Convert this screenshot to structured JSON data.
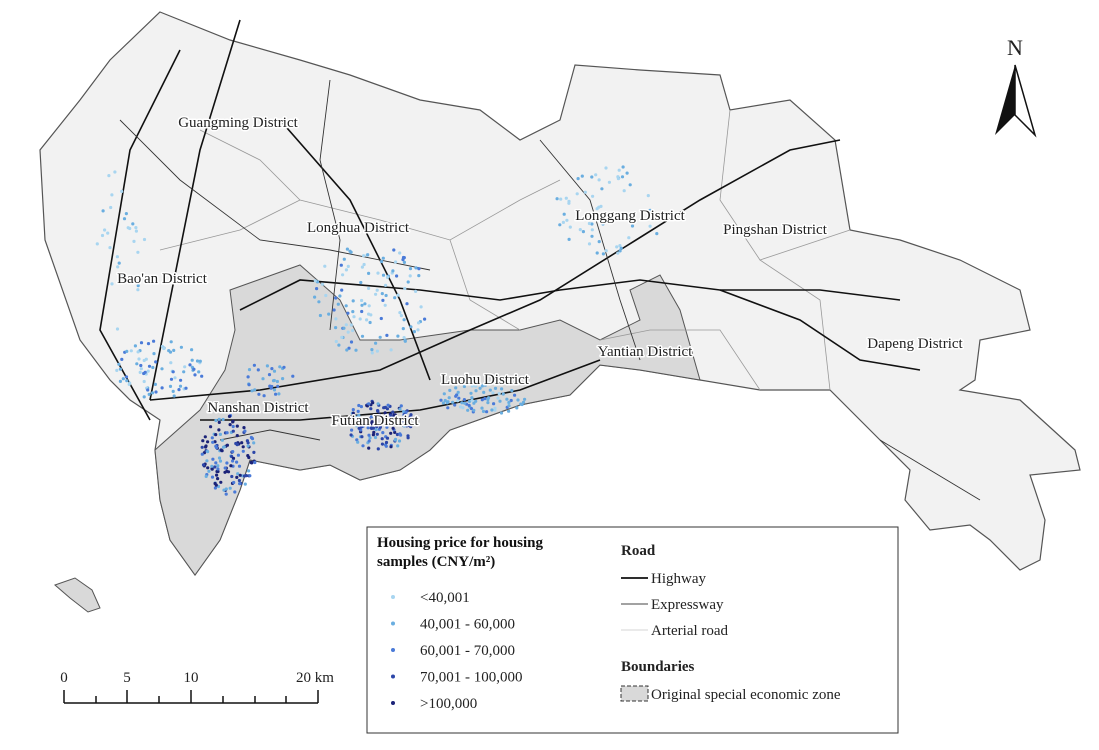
{
  "north_arrow": "N",
  "districts": [
    "Guangming District",
    "Longhua District",
    "Longgang District",
    "Pingshan District",
    "Bao'an District",
    "Yantian District",
    "Dapeng District",
    "Luohu District",
    "Nanshan District",
    "Futian District"
  ],
  "legend": {
    "price_title": "Housing price for housing samples (CNY/m²)",
    "price_items": [
      {
        "label": "<40,001",
        "color": "#a8d5f0"
      },
      {
        "label": "40,001 - 60,000",
        "color": "#6aaee0"
      },
      {
        "label": "60,001 - 70,000",
        "color": "#4a7ad8"
      },
      {
        "label": "70,001 - 100,000",
        "color": "#2c46a8"
      },
      {
        "label": ">100,000",
        "color": "#1b2378"
      }
    ],
    "road_title": "Road",
    "road_items": [
      "Highway",
      "Expressway",
      "Arterial road"
    ],
    "boundary_title": "Boundaries",
    "boundary_items": [
      "Original special economic zone"
    ]
  },
  "scale_bar": {
    "labels": [
      "0",
      "5",
      "10",
      "20 km"
    ]
  }
}
